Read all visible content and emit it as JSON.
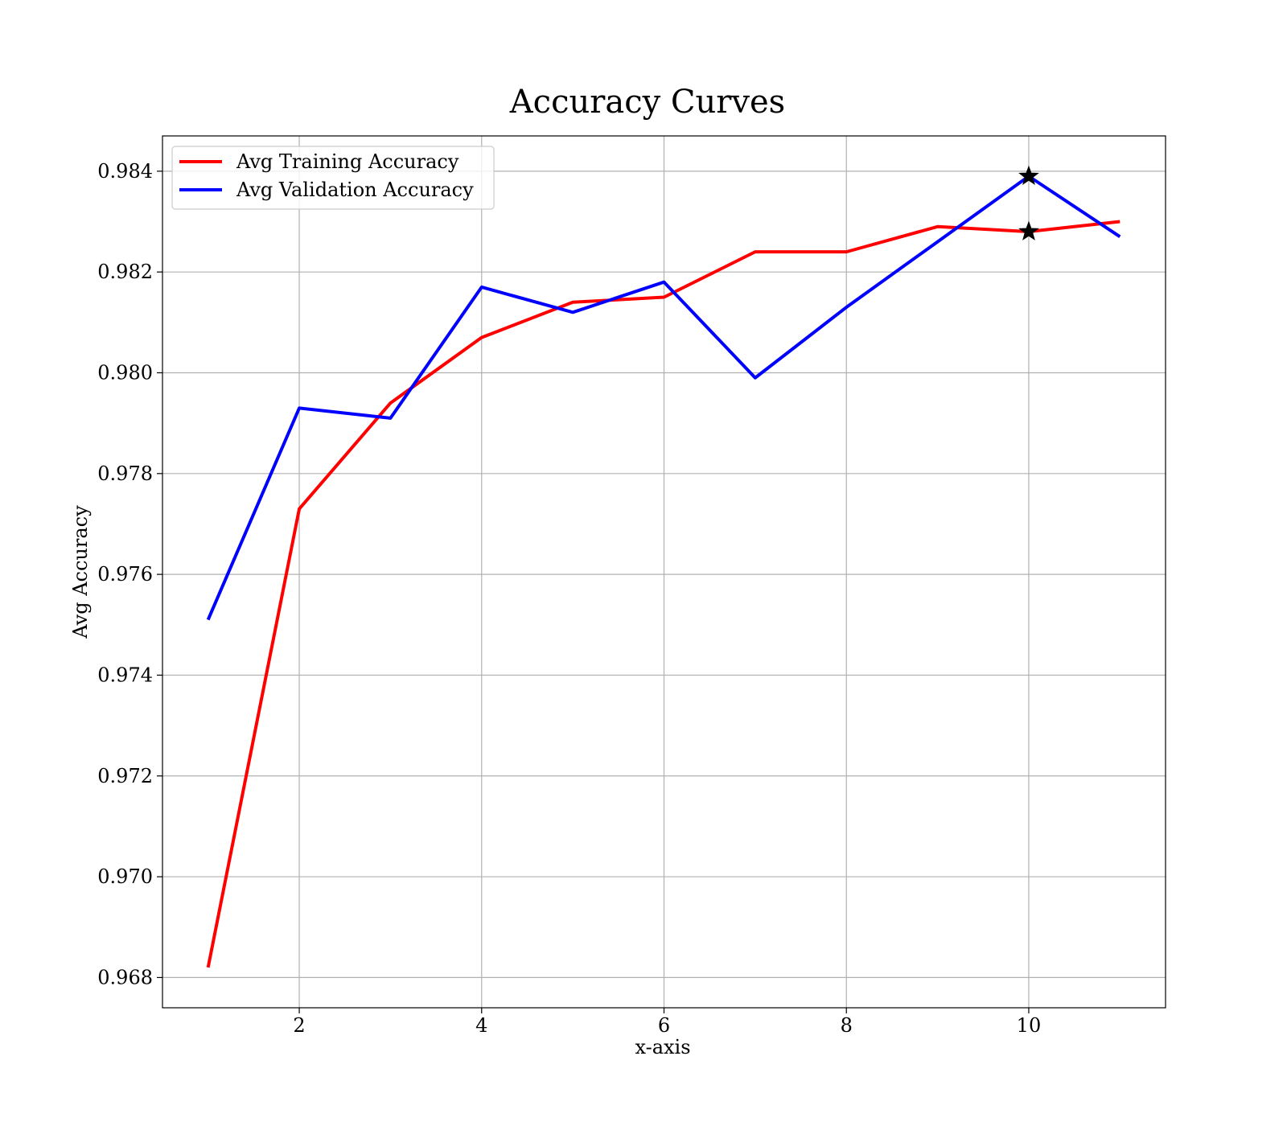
{
  "chart_data": {
    "type": "line",
    "title": "Accuracy Curves",
    "xlabel": "x-axis",
    "ylabel": "Avg Accuracy",
    "xlim": [
      0.5,
      11.5
    ],
    "ylim": [
      0.9674,
      0.9847
    ],
    "x_ticks": [
      2,
      4,
      6,
      8,
      10
    ],
    "x_tick_labels": [
      "2",
      "4",
      "6",
      "8",
      "10"
    ],
    "y_ticks": [
      0.968,
      0.97,
      0.972,
      0.974,
      0.976,
      0.978,
      0.98,
      0.982,
      0.984
    ],
    "y_tick_labels": [
      "0.968",
      "0.970",
      "0.972",
      "0.974",
      "0.976",
      "0.978",
      "0.980",
      "0.982",
      "0.984"
    ],
    "grid": true,
    "legend_position": "top-left",
    "x": [
      1,
      2,
      3,
      4,
      5,
      6,
      7,
      8,
      9,
      10,
      11
    ],
    "series": [
      {
        "name": "Avg Training Accuracy",
        "color": "#ff0000",
        "values": [
          0.9682,
          0.9773,
          0.9794,
          0.9807,
          0.9814,
          0.9815,
          0.9824,
          0.9824,
          0.9829,
          0.9828,
          0.983
        ]
      },
      {
        "name": "Avg Validation Accuracy",
        "color": "#0000ff",
        "values": [
          0.9751,
          0.9793,
          0.9791,
          0.9817,
          0.9812,
          0.9818,
          0.9799,
          0.9813,
          0.9826,
          0.9839,
          0.9827
        ]
      }
    ],
    "markers": [
      {
        "series": "Avg Training Accuracy",
        "x": 10,
        "y": 0.9828,
        "symbol": "star",
        "color": "#000000"
      },
      {
        "series": "Avg Validation Accuracy",
        "x": 10,
        "y": 0.9839,
        "symbol": "star",
        "color": "#000000"
      }
    ]
  }
}
